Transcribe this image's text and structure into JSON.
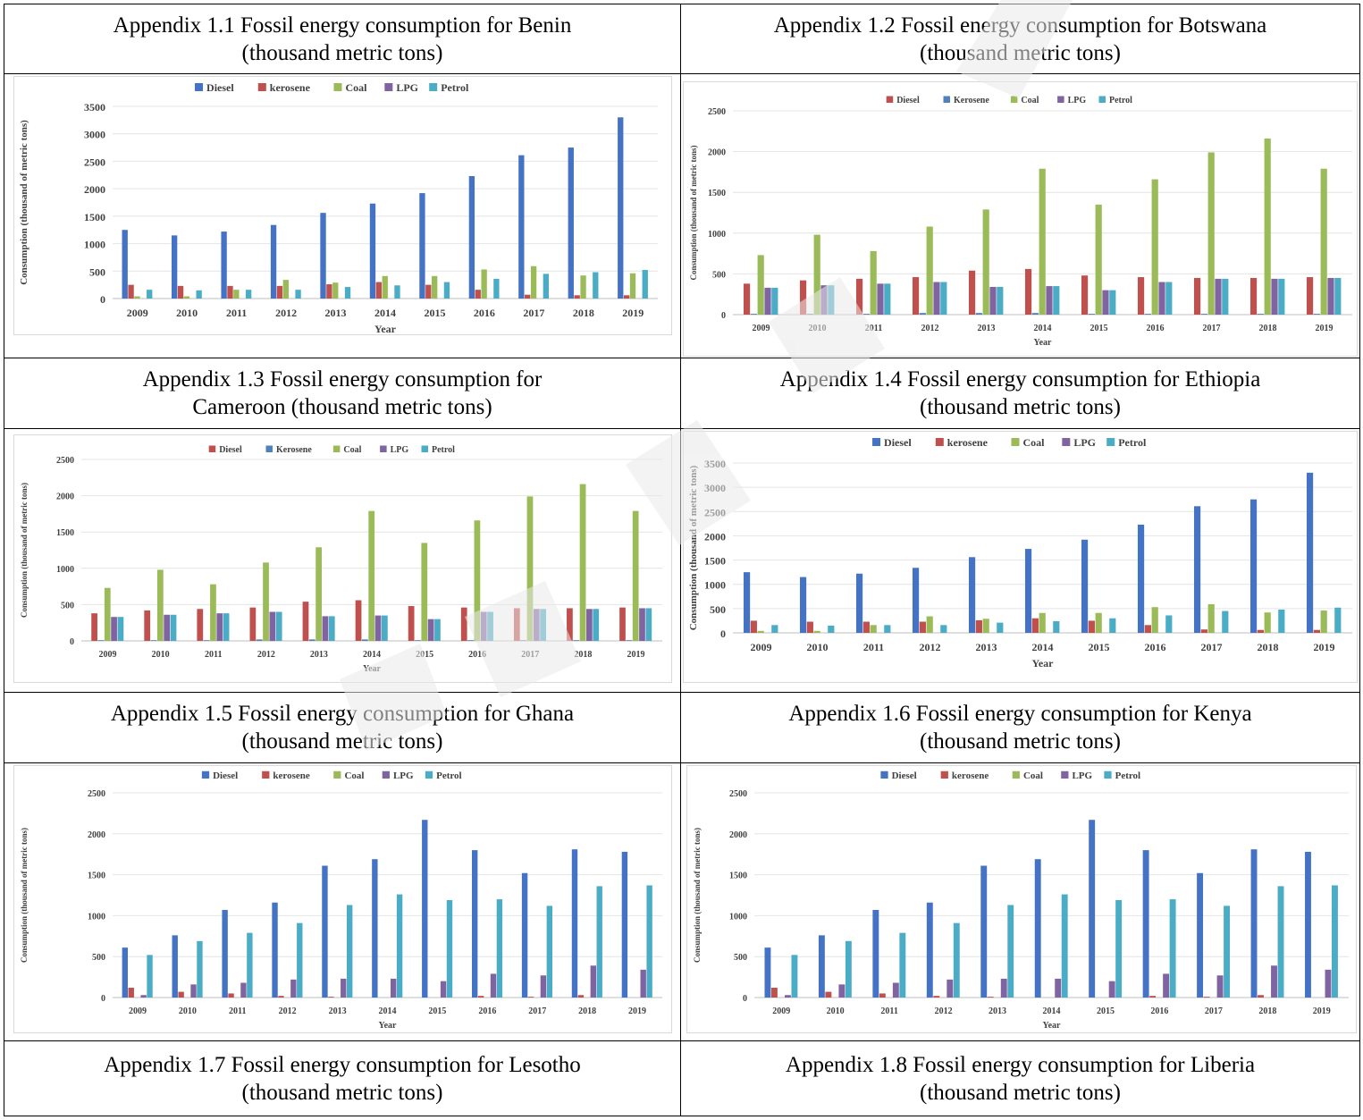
{
  "titles": [
    {
      "line1": "Appendix 1.1 Fossil energy consumption for Benin",
      "line2": "(thousand metric tons)"
    },
    {
      "line1": "Appendix 1.2 Fossil energy consumption for Botswana",
      "line2": "(thousand metric tons)"
    },
    {
      "line1": "Appendix 1.3 Fossil energy consumption for",
      "line2": "Cameroon (thousand metric tons)"
    },
    {
      "line1": "Appendix 1.4 Fossil energy consumption for Ethiopia",
      "line2": "(thousand metric tons)"
    },
    {
      "line1": "Appendix 1.5 Fossil energy consumption for Ghana",
      "line2": "(thousand metric tons)"
    },
    {
      "line1": "Appendix 1.6 Fossil energy consumption for Kenya",
      "line2": "(thousand metric tons)"
    },
    {
      "line1": "Appendix 1.7 Fossil energy consumption for Lesotho",
      "line2": "(thousand metric tons)"
    },
    {
      "line1": "Appendix 1.8 Fossil energy consumption for Liberia",
      "line2": "(thousand metric tons)"
    }
  ],
  "chart_data": [
    {
      "type": "bar",
      "xlabel": "Year",
      "ylabel": "Consumption (thousand of metric tons)",
      "ylim": [
        0,
        3500
      ],
      "yticks": [
        0,
        500,
        1000,
        1500,
        2000,
        2500,
        3000,
        3500
      ],
      "grid": true,
      "legend": "top",
      "categories": [
        "2009",
        "2010",
        "2011",
        "2012",
        "2013",
        "2014",
        "2015",
        "2016",
        "2017",
        "2018",
        "2019"
      ],
      "series": [
        {
          "name": "Diesel",
          "color": "#4472c4",
          "values": [
            1250,
            1150,
            1220,
            1340,
            1560,
            1730,
            1920,
            2230,
            2610,
            2750,
            3300
          ]
        },
        {
          "name": "kerosene",
          "color": "#c0504d",
          "values": [
            250,
            230,
            230,
            230,
            260,
            300,
            250,
            160,
            70,
            60,
            60
          ]
        },
        {
          "name": "Coal",
          "color": "#9bbb59",
          "values": [
            40,
            40,
            160,
            340,
            290,
            410,
            410,
            530,
            590,
            420,
            460
          ]
        },
        {
          "name": "LPG",
          "color": "#8064a2",
          "values": [
            0,
            0,
            0,
            0,
            0,
            0,
            0,
            0,
            0,
            0,
            0
          ]
        },
        {
          "name": "Petrol",
          "color": "#4bacc6",
          "values": [
            160,
            150,
            160,
            160,
            210,
            240,
            300,
            360,
            450,
            480,
            520
          ]
        }
      ]
    },
    {
      "type": "bar",
      "xlabel": "Year",
      "ylabel": "Consumption (thousand of metric tons)",
      "ylim": [
        0,
        2500
      ],
      "yticks": [
        0,
        500,
        1000,
        1500,
        2000,
        2500
      ],
      "grid": true,
      "legend": "top",
      "categories": [
        "2009",
        "2010",
        "2011",
        "2012",
        "2013",
        "2014",
        "2015",
        "2016",
        "2017",
        "2018",
        "2019"
      ],
      "series": [
        {
          "name": "Diesel",
          "color": "#c0504d",
          "values": [
            380,
            420,
            440,
            460,
            540,
            560,
            480,
            460,
            450,
            450,
            460
          ]
        },
        {
          "name": "Kerosene",
          "color": "#4f81bd",
          "values": [
            10,
            10,
            10,
            20,
            20,
            20,
            10,
            10,
            10,
            10,
            10
          ]
        },
        {
          "name": "Coal",
          "color": "#9bbb59",
          "values": [
            730,
            980,
            780,
            1080,
            1290,
            1790,
            1350,
            1660,
            1990,
            2160,
            1790
          ]
        },
        {
          "name": "LPG",
          "color": "#8064a2",
          "values": [
            330,
            360,
            380,
            400,
            340,
            350,
            300,
            400,
            440,
            440,
            450
          ]
        },
        {
          "name": "Petrol",
          "color": "#4bacc6",
          "values": [
            330,
            360,
            380,
            400,
            340,
            350,
            300,
            400,
            440,
            440,
            450
          ]
        }
      ]
    },
    {
      "type": "bar",
      "xlabel": "Year",
      "ylabel": "Consumption (thousand of metric tons)",
      "ylim": [
        0,
        2500
      ],
      "yticks": [
        0,
        500,
        1000,
        1500,
        2000,
        2500
      ],
      "grid": true,
      "legend": "top",
      "categories": [
        "2009",
        "2010",
        "2011",
        "2012",
        "2013",
        "2014",
        "2015",
        "2016",
        "2017",
        "2018",
        "2019"
      ],
      "series": [
        {
          "name": "Diesel",
          "color": "#c0504d",
          "values": [
            380,
            420,
            440,
            460,
            540,
            560,
            480,
            460,
            450,
            450,
            460
          ]
        },
        {
          "name": "Kerosene",
          "color": "#4f81bd",
          "values": [
            10,
            10,
            10,
            20,
            20,
            20,
            10,
            10,
            10,
            10,
            10
          ]
        },
        {
          "name": "Coal",
          "color": "#9bbb59",
          "values": [
            730,
            980,
            780,
            1080,
            1290,
            1790,
            1350,
            1660,
            1990,
            2160,
            1790
          ]
        },
        {
          "name": "LPG",
          "color": "#8064a2",
          "values": [
            330,
            360,
            380,
            400,
            340,
            350,
            300,
            400,
            440,
            440,
            450
          ]
        },
        {
          "name": "Petrol",
          "color": "#4bacc6",
          "values": [
            330,
            360,
            380,
            400,
            340,
            350,
            300,
            400,
            440,
            440,
            450
          ]
        }
      ]
    },
    {
      "type": "bar",
      "xlabel": "Year",
      "ylabel": "Consumption (thousand of metric tons)",
      "ylim": [
        0,
        3500
      ],
      "yticks": [
        0,
        500,
        1000,
        1500,
        2000,
        2500,
        3000,
        3500
      ],
      "grid": true,
      "legend": "top",
      "categories": [
        "2009",
        "2010",
        "2011",
        "2012",
        "2013",
        "2014",
        "2015",
        "2016",
        "2017",
        "2018",
        "2019"
      ],
      "series": [
        {
          "name": "Diesel",
          "color": "#4472c4",
          "values": [
            1250,
            1150,
            1220,
            1340,
            1560,
            1730,
            1920,
            2230,
            2610,
            2750,
            3300
          ]
        },
        {
          "name": "kerosene",
          "color": "#c0504d",
          "values": [
            250,
            230,
            230,
            230,
            260,
            300,
            250,
            160,
            70,
            60,
            60
          ]
        },
        {
          "name": "Coal",
          "color": "#9bbb59",
          "values": [
            40,
            40,
            160,
            340,
            290,
            410,
            410,
            530,
            590,
            420,
            460
          ]
        },
        {
          "name": "LPG",
          "color": "#8064a2",
          "values": [
            0,
            0,
            0,
            0,
            0,
            0,
            0,
            0,
            0,
            0,
            0
          ]
        },
        {
          "name": "Petrol",
          "color": "#4bacc6",
          "values": [
            160,
            150,
            160,
            160,
            210,
            240,
            300,
            360,
            450,
            480,
            520
          ]
        }
      ]
    },
    {
      "type": "bar",
      "xlabel": "Year",
      "ylabel": "Consumption (thousand of metric tons)",
      "ylim": [
        0,
        2500
      ],
      "yticks": [
        0,
        500,
        1000,
        1500,
        2000,
        2500
      ],
      "grid": true,
      "legend": "top",
      "categories": [
        "2009",
        "2010",
        "2011",
        "2012",
        "2013",
        "2014",
        "2015",
        "2016",
        "2017",
        "2018",
        "2019"
      ],
      "series": [
        {
          "name": "Diesel",
          "color": "#4472c4",
          "values": [
            610,
            760,
            1070,
            1160,
            1610,
            1690,
            2170,
            1800,
            1520,
            1810,
            1780
          ]
        },
        {
          "name": "kerosene",
          "color": "#c0504d",
          "values": [
            120,
            70,
            50,
            20,
            10,
            0,
            0,
            20,
            10,
            30,
            0
          ]
        },
        {
          "name": "Coal",
          "color": "#9bbb59",
          "values": [
            0,
            0,
            0,
            0,
            0,
            0,
            0,
            0,
            0,
            0,
            0
          ]
        },
        {
          "name": "LPG",
          "color": "#8064a2",
          "values": [
            30,
            160,
            180,
            220,
            230,
            230,
            200,
            290,
            270,
            390,
            340
          ]
        },
        {
          "name": "Petrol",
          "color": "#4bacc6",
          "values": [
            520,
            690,
            790,
            910,
            1130,
            1260,
            1190,
            1200,
            1120,
            1360,
            1370
          ]
        }
      ]
    },
    {
      "type": "bar",
      "xlabel": "Year",
      "ylabel": "Consumption (thousand of metric tons)",
      "ylim": [
        0,
        2500
      ],
      "yticks": [
        0,
        500,
        1000,
        1500,
        2000,
        2500
      ],
      "grid": true,
      "legend": "top",
      "categories": [
        "2009",
        "2010",
        "2011",
        "2012",
        "2013",
        "2014",
        "2015",
        "2016",
        "2017",
        "2018",
        "2019"
      ],
      "series": [
        {
          "name": "Diesel",
          "color": "#4472c4",
          "values": [
            610,
            760,
            1070,
            1160,
            1610,
            1690,
            2170,
            1800,
            1520,
            1810,
            1780
          ]
        },
        {
          "name": "kerosene",
          "color": "#c0504d",
          "values": [
            120,
            70,
            50,
            20,
            10,
            0,
            0,
            20,
            10,
            30,
            0
          ]
        },
        {
          "name": "Coal",
          "color": "#9bbb59",
          "values": [
            0,
            0,
            0,
            0,
            0,
            0,
            0,
            0,
            0,
            0,
            0
          ]
        },
        {
          "name": "LPG",
          "color": "#8064a2",
          "values": [
            30,
            160,
            180,
            220,
            230,
            230,
            200,
            290,
            270,
            390,
            340
          ]
        },
        {
          "name": "Petrol",
          "color": "#4bacc6",
          "values": [
            520,
            690,
            790,
            910,
            1130,
            1260,
            1190,
            1200,
            1120,
            1360,
            1370
          ]
        }
      ]
    }
  ]
}
